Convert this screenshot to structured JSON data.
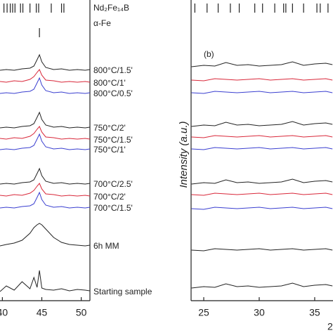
{
  "chart_data": [
    {
      "type": "line",
      "x": [
        39.7,
        40.5,
        41.5,
        42.5,
        43.5,
        44.0,
        44.4,
        44.7,
        45.0,
        45.5,
        46.5,
        47.5,
        48.5,
        49.5,
        50.5,
        51.1
      ],
      "xlim": [
        39.7,
        51.1
      ],
      "xticks": [
        40,
        45,
        50
      ],
      "ylim": [
        0,
        428
      ],
      "phases": [
        {
          "name": "Nd₂Fe₁₄B",
          "positions": [
            40.2,
            40.6,
            41.0,
            41.3,
            41.6,
            42.3,
            42.6,
            43.5,
            44.3,
            44.6,
            46.2,
            47.5,
            47.8
          ]
        },
        {
          "name": "α-Fe",
          "positions": [
            44.7
          ]
        }
      ],
      "series": [
        {
          "name": "800°C/1.5'",
          "color": "#222222",
          "values": [
            328,
            329,
            328,
            330,
            331,
            334,
            343,
            350,
            340,
            332,
            329,
            330,
            328,
            329,
            328,
            329
          ]
        },
        {
          "name": "800°C/1'",
          "color": "#d9283a",
          "values": [
            312,
            311,
            313,
            312,
            315,
            319,
            325,
            329,
            321,
            314,
            313,
            311,
            312,
            311,
            312,
            311
          ]
        },
        {
          "name": "800°C/0.5'",
          "color": "#3a3fd0",
          "values": [
            295,
            296,
            295,
            297,
            298,
            301,
            310,
            317,
            307,
            299,
            296,
            297,
            295,
            296,
            295,
            296
          ]
        },
        {
          "name": "750°C/2'",
          "color": "#222222",
          "values": [
            246,
            247,
            246,
            248,
            249,
            252,
            261,
            268,
            258,
            250,
            247,
            248,
            246,
            247,
            246,
            247
          ]
        },
        {
          "name": "750°C/1.5'",
          "color": "#d9283a",
          "values": [
            231,
            230,
            232,
            231,
            234,
            238,
            244,
            248,
            240,
            233,
            232,
            230,
            231,
            230,
            231,
            230
          ]
        },
        {
          "name": "750°C/1'",
          "color": "#3a3fd0",
          "values": [
            215,
            216,
            215,
            217,
            218,
            221,
            230,
            237,
            227,
            219,
            216,
            217,
            215,
            216,
            215,
            216
          ]
        },
        {
          "name": "700°C/2.5'",
          "color": "#222222",
          "values": [
            166,
            167,
            166,
            168,
            169,
            172,
            181,
            188,
            178,
            170,
            167,
            168,
            166,
            167,
            166,
            167
          ]
        },
        {
          "name": "700°C/2'",
          "color": "#d9283a",
          "values": [
            150,
            149,
            151,
            150,
            153,
            157,
            163,
            167,
            159,
            152,
            151,
            149,
            150,
            149,
            150,
            149
          ]
        },
        {
          "name": "700°C/1.5'",
          "color": "#3a3fd0",
          "values": [
            132,
            133,
            132,
            134,
            135,
            138,
            147,
            154,
            144,
            136,
            133,
            134,
            132,
            133,
            132,
            133
          ]
        },
        {
          "name": "6h MM",
          "color": "#222222",
          "values": [
            78,
            80,
            82,
            86,
            96,
            104,
            108,
            110,
            108,
            102,
            90,
            83,
            80,
            79,
            78,
            79
          ]
        },
        {
          "name": "Starting sample",
          "color": "#222222",
          "values": [
            13,
            21,
            15,
            27,
            17,
            33,
            19,
            43,
            18,
            16,
            15,
            17,
            14,
            16,
            15,
            14
          ]
        }
      ]
    },
    {
      "type": "line",
      "panel_label": "(b)",
      "y_label": "Intensity (a.u.)",
      "x_label": "2",
      "x": [
        23.9,
        25,
        26,
        27,
        28,
        29,
        30,
        31,
        32,
        33,
        34,
        35,
        36,
        36.6
      ],
      "xlim": [
        23.86,
        36.65
      ],
      "xticks": [
        25,
        30,
        35
      ],
      "ylim": [
        0,
        428
      ],
      "phase_positions": [
        24.2,
        25.3,
        26.3,
        27.4,
        28.2,
        29.6,
        30.3,
        31.4,
        32.2,
        32.4,
        33.0,
        34.0,
        35.2,
        35.5,
        36.2
      ],
      "series": [
        {
          "color": "#222222",
          "values": [
            333,
            335,
            334,
            339,
            335,
            336,
            334,
            335,
            336,
            340,
            335,
            337,
            338,
            336
          ]
        },
        {
          "color": "#d9283a",
          "values": [
            314,
            313,
            316,
            315,
            314,
            315,
            316,
            314,
            315,
            316,
            314,
            315,
            316,
            314
          ]
        },
        {
          "color": "#3a3fd0",
          "values": [
            296,
            295,
            298,
            297,
            296,
            297,
            298,
            296,
            297,
            298,
            296,
            297,
            298,
            296
          ]
        },
        {
          "color": "#222222",
          "values": [
            248,
            250,
            249,
            254,
            250,
            251,
            249,
            250,
            251,
            255,
            250,
            252,
            253,
            251
          ]
        },
        {
          "color": "#d9283a",
          "values": [
            233,
            232,
            235,
            234,
            233,
            234,
            235,
            233,
            234,
            235,
            233,
            234,
            235,
            233
          ]
        },
        {
          "color": "#3a3fd0",
          "values": [
            216,
            215,
            218,
            217,
            216,
            217,
            218,
            216,
            217,
            218,
            216,
            217,
            218,
            216
          ]
        },
        {
          "color": "#222222",
          "values": [
            166,
            168,
            167,
            172,
            168,
            169,
            167,
            168,
            169,
            173,
            168,
            170,
            171,
            169
          ]
        },
        {
          "color": "#d9283a",
          "values": [
            151,
            150,
            153,
            152,
            151,
            152,
            153,
            151,
            152,
            153,
            151,
            152,
            153,
            151
          ]
        },
        {
          "color": "#3a3fd0",
          "values": [
            131,
            130,
            133,
            132,
            131,
            132,
            133,
            131,
            132,
            133,
            131,
            132,
            133,
            131
          ]
        },
        {
          "color": "#222222",
          "values": [
            72,
            71,
            74,
            73,
            72,
            73,
            74,
            72,
            73,
            74,
            72,
            73,
            74,
            72
          ]
        },
        {
          "color": "#222222",
          "values": [
            18,
            20,
            19,
            24,
            20,
            21,
            19,
            20,
            21,
            25,
            20,
            22,
            23,
            21
          ]
        }
      ]
    }
  ]
}
